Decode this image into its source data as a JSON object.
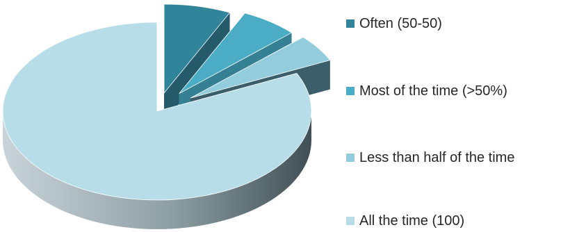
{
  "chart_data": {
    "type": "pie",
    "title": "",
    "slices": [
      {
        "label": "Often (50-50)",
        "value": 7,
        "color": "#31859B"
      },
      {
        "label": "Most of the time (>50%)",
        "value": 6,
        "color": "#4BACC6"
      },
      {
        "label": "Less than half of the time",
        "value": 5,
        "color": "#93CDDD"
      },
      {
        "label": "All the time (100)",
        "value": 82,
        "color": "#B7DEE8"
      }
    ],
    "exploded": true,
    "three_d": true,
    "legend_position": "right"
  }
}
